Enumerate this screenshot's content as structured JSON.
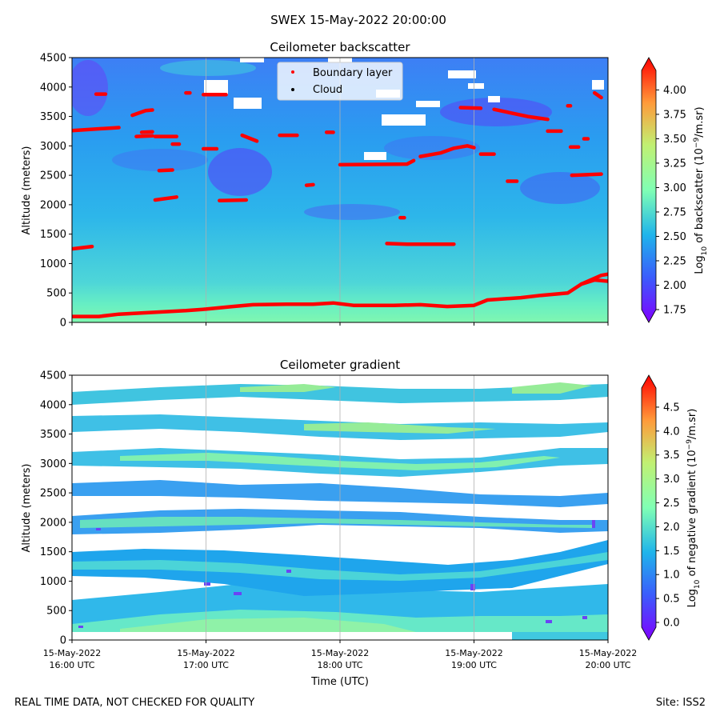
{
  "figure": {
    "title": "SWEX 15-May-2022 20:00:00",
    "footer_left": "REAL TIME DATA, NOT CHECKED FOR QUALITY",
    "footer_right": "Site: ISS2"
  },
  "chart_data": [
    {
      "type": "heatmap",
      "title": "Ceilometer backscatter",
      "xlabel": "",
      "ylabel": "Altitude (meters)",
      "ylim": [
        0,
        4500
      ],
      "yticks": [
        "0",
        "500",
        "1000",
        "1500",
        "2000",
        "2500",
        "3000",
        "3500",
        "4000",
        "4500"
      ],
      "x_hours": [
        16,
        20
      ],
      "grid_x": true,
      "colorbar": {
        "label": "Log10 of backscatter (10^-9/m.sr)",
        "label_main": "Log",
        "label_sub": "10",
        "label_mid": " of backscatter (10",
        "label_sup": "−9",
        "label_end": "/m.sr)",
        "range": [
          1.75,
          4.2
        ],
        "ticks": [
          "1.75",
          "2.00",
          "2.25",
          "2.50",
          "2.75",
          "3.00",
          "3.25",
          "3.50",
          "3.75",
          "4.00"
        ],
        "colormap": "rainbow"
      },
      "legend": {
        "placement": "top-center",
        "entries": [
          {
            "label": "Boundary layer",
            "color": "#ff0000"
          },
          {
            "label": "Cloud",
            "color": "#000000"
          }
        ]
      },
      "series": [
        {
          "name": "Boundary layer",
          "color": "#ff0000",
          "segments": [
            [
              [
                16.0,
                100
              ],
              [
                16.2,
                100
              ],
              [
                16.35,
                140
              ],
              [
                16.6,
                170
              ],
              [
                16.85,
                200
              ],
              [
                17.0,
                225
              ],
              [
                17.2,
                270
              ],
              [
                17.35,
                300
              ],
              [
                17.6,
                310
              ],
              [
                17.8,
                310
              ],
              [
                17.95,
                330
              ],
              [
                18.1,
                290
              ],
              [
                18.4,
                290
              ],
              [
                18.6,
                300
              ],
              [
                18.8,
                270
              ],
              [
                19.0,
                290
              ],
              [
                19.1,
                380
              ],
              [
                19.35,
                420
              ],
              [
                19.5,
                460
              ],
              [
                19.7,
                500
              ],
              [
                19.8,
                650
              ],
              [
                19.9,
                720
              ],
              [
                20.0,
                700
              ]
            ],
            [
              [
                16.0,
                1250
              ],
              [
                16.15,
                1290
              ]
            ],
            [
              [
                16.0,
                3260
              ],
              [
                16.35,
                3310
              ]
            ],
            [
              [
                16.45,
                3520
              ],
              [
                16.55,
                3600
              ],
              [
                16.6,
                3610
              ]
            ],
            [
              [
                16.48,
                3160
              ],
              [
                16.6,
                3170
              ]
            ],
            [
              [
                16.52,
                3230
              ],
              [
                16.6,
                3240
              ]
            ],
            [
              [
                16.62,
                3160
              ],
              [
                16.78,
                3160
              ]
            ],
            [
              [
                16.62,
                2080
              ],
              [
                16.78,
                2130
              ]
            ],
            [
              [
                16.65,
                2580
              ],
              [
                16.75,
                2590
              ]
            ],
            [
              [
                16.75,
                3030
              ],
              [
                16.8,
                3030
              ]
            ],
            [
              [
                16.85,
                3900
              ],
              [
                16.88,
                3900
              ]
            ],
            [
              [
                16.98,
                3870
              ],
              [
                17.15,
                3870
              ]
            ],
            [
              [
                16.98,
                2950
              ],
              [
                17.08,
                2950
              ]
            ],
            [
              [
                16.18,
                3880
              ],
              [
                16.25,
                3880
              ]
            ],
            [
              [
                17.1,
                2070
              ],
              [
                17.3,
                2080
              ]
            ],
            [
              [
                17.27,
                3180
              ],
              [
                17.38,
                3080
              ]
            ],
            [
              [
                17.55,
                3180
              ],
              [
                17.68,
                3180
              ]
            ],
            [
              [
                17.75,
                2330
              ],
              [
                17.8,
                2340
              ]
            ],
            [
              [
                17.9,
                3230
              ],
              [
                17.95,
                3230
              ]
            ],
            [
              [
                18.0,
                2680
              ],
              [
                18.5,
                2690
              ],
              [
                18.55,
                2750
              ]
            ],
            [
              [
                18.35,
                1340
              ],
              [
                18.5,
                1330
              ],
              [
                18.85,
                1330
              ]
            ],
            [
              [
                18.45,
                1780
              ],
              [
                18.48,
                1780
              ]
            ],
            [
              [
                18.6,
                2820
              ],
              [
                18.75,
                2880
              ],
              [
                18.85,
                2960
              ],
              [
                18.95,
                3000
              ],
              [
                19.0,
                2970
              ]
            ],
            [
              [
                18.9,
                3650
              ],
              [
                19.05,
                3640
              ]
            ],
            [
              [
                19.05,
                2860
              ],
              [
                19.15,
                2860
              ]
            ],
            [
              [
                19.15,
                3620
              ],
              [
                19.4,
                3500
              ],
              [
                19.55,
                3450
              ]
            ],
            [
              [
                19.25,
                2400
              ],
              [
                19.32,
                2400
              ]
            ],
            [
              [
                19.55,
                3250
              ],
              [
                19.65,
                3250
              ]
            ],
            [
              [
                19.7,
                3680
              ],
              [
                19.72,
                3680
              ]
            ],
            [
              [
                19.72,
                2980
              ],
              [
                19.78,
                2980
              ]
            ],
            [
              [
                19.73,
                2500
              ],
              [
                19.95,
                2520
              ]
            ],
            [
              [
                19.82,
                3120
              ],
              [
                19.85,
                3120
              ]
            ],
            [
              [
                19.9,
                3900
              ],
              [
                19.95,
                3820
              ]
            ],
            [
              [
                19.8,
                650
              ],
              [
                19.95,
                800
              ],
              [
                20.0,
                820
              ]
            ]
          ]
        },
        {
          "name": "Cloud",
          "color": "#000000",
          "segments": []
        }
      ]
    },
    {
      "type": "heatmap",
      "title": "Ceilometer gradient",
      "xlabel": "Time (UTC)",
      "ylabel": "Altitude (meters)",
      "ylim": [
        0,
        4500
      ],
      "yticks": [
        "0",
        "500",
        "1000",
        "1500",
        "2000",
        "2500",
        "3000",
        "3500",
        "4000",
        "4500"
      ],
      "x_hours": [
        16,
        20
      ],
      "grid_x": true,
      "xticks": [
        {
          "line1": "15-May-2022",
          "line2": "16:00 UTC"
        },
        {
          "line1": "15-May-2022",
          "line2": "17:00 UTC"
        },
        {
          "line1": "15-May-2022",
          "line2": "18:00 UTC"
        },
        {
          "line1": "15-May-2022",
          "line2": "19:00 UTC"
        },
        {
          "line1": "15-May-2022",
          "line2": "20:00 UTC"
        }
      ],
      "colorbar": {
        "label": "Log10 of negative gradient (10^-9/m.sr)",
        "label_main": "Log",
        "label_sub": "10",
        "label_mid": " of negative gradient (10",
        "label_sup": "−9",
        "label_end": "/m.sr)",
        "range": [
          -0.1,
          4.9
        ],
        "ticks": [
          "0.0",
          "0.5",
          "1.0",
          "1.5",
          "2.0",
          "2.5",
          "3.0",
          "3.5",
          "4.0",
          "4.5"
        ],
        "colormap": "rainbow"
      }
    }
  ]
}
